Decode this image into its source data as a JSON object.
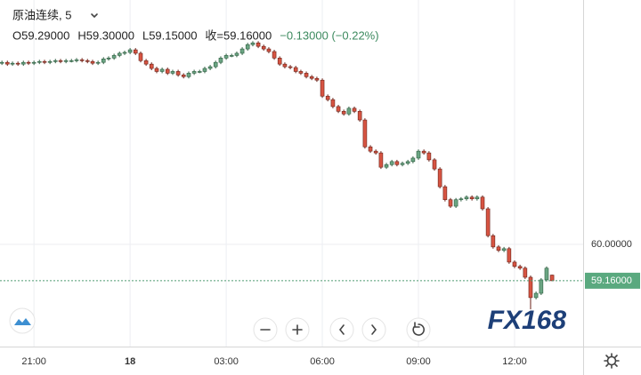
{
  "chart_data": {
    "type": "candlestick",
    "symbol": "原油连续, 5",
    "header_items": [
      "O59.29000",
      "H59.30000",
      "L59.15000",
      "收=59.16000",
      "−0.13000 (−0.22%)"
    ],
    "logo": "FX168",
    "up_color": "#6ba583",
    "down_color": "#d75442",
    "x": [
      20,
      20.17,
      20.33,
      20.5,
      20.67,
      20.83,
      21,
      21.17,
      21.33,
      21.5,
      21.67,
      21.83,
      22,
      22.17,
      22.33,
      22.5,
      22.67,
      22.83,
      23,
      23.17,
      23.33,
      23.5,
      23.67,
      23.83,
      24,
      24.17,
      24.33,
      24.5,
      24.67,
      24.83,
      25,
      25.17,
      25.33,
      25.5,
      25.67,
      25.83,
      26,
      26.17,
      26.33,
      26.5,
      26.67,
      26.83,
      27,
      27.17,
      27.33,
      27.5,
      27.67,
      27.83,
      28,
      28.17,
      28.33,
      28.5,
      28.67,
      28.83,
      29,
      29.17,
      29.33,
      29.5,
      29.67,
      29.83,
      30,
      30.17,
      30.33,
      30.5,
      30.67,
      30.83,
      31,
      31.17,
      31.33,
      31.5,
      31.67,
      31.83,
      32,
      32.17,
      32.33,
      32.5,
      32.67,
      32.83,
      33,
      33.17,
      33.33,
      33.5,
      33.67,
      33.83,
      34,
      34.17,
      34.33,
      34.5,
      34.67,
      34.83,
      35,
      35.17,
      35.33,
      35.5,
      35.67,
      35.83,
      36,
      36.17,
      36.33,
      36.5,
      36.67,
      36.83,
      37,
      37.17
    ],
    "open": [
      64.18,
      64.2,
      64.16,
      64.18,
      64.16,
      64.2,
      64.18,
      64.2,
      64.22,
      64.2,
      64.22,
      64.24,
      64.22,
      64.24,
      64.24,
      64.26,
      64.24,
      64.22,
      64.18,
      64.2,
      64.28,
      64.3,
      64.36,
      64.41,
      64.43,
      64.49,
      64.41,
      64.24,
      64.16,
      64.06,
      63.99,
      64.04,
      63.95,
      63.99,
      63.91,
      63.87,
      63.95,
      63.99,
      63.99,
      64.06,
      64.1,
      64.2,
      64.3,
      64.36,
      64.36,
      64.41,
      64.51,
      64.61,
      64.65,
      64.57,
      64.51,
      64.45,
      64.3,
      64.16,
      64.1,
      64.08,
      63.99,
      63.95,
      63.87,
      63.83,
      63.79,
      63.42,
      63.34,
      63.18,
      63.07,
      63.01,
      63.14,
      63.07,
      62.87,
      62.25,
      62.15,
      62.11,
      61.78,
      61.84,
      61.91,
      61.84,
      61.87,
      61.91,
      61.99,
      62.15,
      62.11,
      61.95,
      61.74,
      61.33,
      61.03,
      60.88,
      61.03,
      61.05,
      61.09,
      61.05,
      61.09,
      60.82,
      60.2,
      59.94,
      59.86,
      59.9,
      59.59,
      59.49,
      59.45,
      59.24,
      58.77,
      58.87,
      59.18,
      59.29
    ],
    "high": [
      64.24,
      64.24,
      64.22,
      64.22,
      64.24,
      64.24,
      64.24,
      64.26,
      64.26,
      64.26,
      64.28,
      64.28,
      64.28,
      64.28,
      64.3,
      64.3,
      64.28,
      64.26,
      64.24,
      64.32,
      64.34,
      64.4,
      64.45,
      64.47,
      64.53,
      64.53,
      64.45,
      64.28,
      64.2,
      64.1,
      64.08,
      64.08,
      64.03,
      64.03,
      63.95,
      63.99,
      64.03,
      64.03,
      64.1,
      64.14,
      64.24,
      64.34,
      64.4,
      64.4,
      64.45,
      64.55,
      64.65,
      64.69,
      64.69,
      64.61,
      64.55,
      64.49,
      64.34,
      64.2,
      64.14,
      64.12,
      64.03,
      63.99,
      63.91,
      63.87,
      63.83,
      63.46,
      63.38,
      63.22,
      63.11,
      63.18,
      63.18,
      63.11,
      62.91,
      62.29,
      62.19,
      62.15,
      61.88,
      61.95,
      61.95,
      61.91,
      61.95,
      62.03,
      62.19,
      62.19,
      62.15,
      61.99,
      61.78,
      61.37,
      61.07,
      61.07,
      61.09,
      61.13,
      61.13,
      61.13,
      61.13,
      60.86,
      60.24,
      59.98,
      59.94,
      59.94,
      59.63,
      59.53,
      59.49,
      59.28,
      58.91,
      59.22,
      59.49,
      59.3
    ],
    "low": [
      64.14,
      64.12,
      64.12,
      64.12,
      64.12,
      64.14,
      64.14,
      64.16,
      64.16,
      64.16,
      64.18,
      64.18,
      64.18,
      64.2,
      64.2,
      64.2,
      64.18,
      64.14,
      64.14,
      64.16,
      64.24,
      64.26,
      64.32,
      64.37,
      64.39,
      64.37,
      64.2,
      64.12,
      64.02,
      63.95,
      63.95,
      63.91,
      63.91,
      63.87,
      63.83,
      63.83,
      63.91,
      63.95,
      63.95,
      64.02,
      64.06,
      64.16,
      64.26,
      64.32,
      64.32,
      64.37,
      64.47,
      64.57,
      64.53,
      64.47,
      64.41,
      64.26,
      64.12,
      64.06,
      64.04,
      63.95,
      63.91,
      63.83,
      63.79,
      63.75,
      63.38,
      63.3,
      63.14,
      63.03,
      62.97,
      62.97,
      63.03,
      62.83,
      62.21,
      62.11,
      62.07,
      61.74,
      61.74,
      61.8,
      61.8,
      61.8,
      61.83,
      61.87,
      61.95,
      62.07,
      61.91,
      61.7,
      61.29,
      60.99,
      60.84,
      60.84,
      60.99,
      61.01,
      61.01,
      61.01,
      60.78,
      60.16,
      59.9,
      59.82,
      59.82,
      59.55,
      59.45,
      59.41,
      59.2,
      58.5,
      58.73,
      58.83,
      59.14,
      59.15
    ],
    "close": [
      64.2,
      64.16,
      64.18,
      64.16,
      64.2,
      64.18,
      64.2,
      64.22,
      64.2,
      64.22,
      64.24,
      64.22,
      64.24,
      64.24,
      64.26,
      64.24,
      64.22,
      64.18,
      64.2,
      64.28,
      64.3,
      64.36,
      64.41,
      64.43,
      64.49,
      64.41,
      64.24,
      64.16,
      64.06,
      63.99,
      64.04,
      63.95,
      63.99,
      63.91,
      63.87,
      63.95,
      63.99,
      63.99,
      64.06,
      64.1,
      64.2,
      64.3,
      64.36,
      64.36,
      64.41,
      64.51,
      64.61,
      64.65,
      64.57,
      64.51,
      64.45,
      64.3,
      64.16,
      64.1,
      64.08,
      63.99,
      63.95,
      63.87,
      63.83,
      63.79,
      63.42,
      63.34,
      63.18,
      63.07,
      63.01,
      63.14,
      63.07,
      62.87,
      62.25,
      62.15,
      62.11,
      61.78,
      61.84,
      61.91,
      61.84,
      61.87,
      61.91,
      61.99,
      62.15,
      62.11,
      61.95,
      61.74,
      61.33,
      61.03,
      60.88,
      61.03,
      61.05,
      61.09,
      61.05,
      61.09,
      60.82,
      60.2,
      59.94,
      59.86,
      59.9,
      59.59,
      59.49,
      59.45,
      59.24,
      58.77,
      58.87,
      59.18,
      59.45,
      59.16
    ],
    "xlim": [
      19.94,
      38.14
    ],
    "xticks": [
      {
        "value": 21,
        "label": "21:00"
      },
      {
        "value": 24,
        "label": "18"
      },
      {
        "value": 27,
        "label": "03:00"
      },
      {
        "value": 30,
        "label": "06:00"
      },
      {
        "value": 33,
        "label": "09:00"
      },
      {
        "value": 36,
        "label": "12:00"
      }
    ],
    "ylim": [
      57.64,
      65.64
    ],
    "yticks": [
      {
        "value": 60,
        "label": "60.00000"
      }
    ],
    "last_price": {
      "value": 59.16,
      "label": "59.16000"
    },
    "grid": true
  }
}
